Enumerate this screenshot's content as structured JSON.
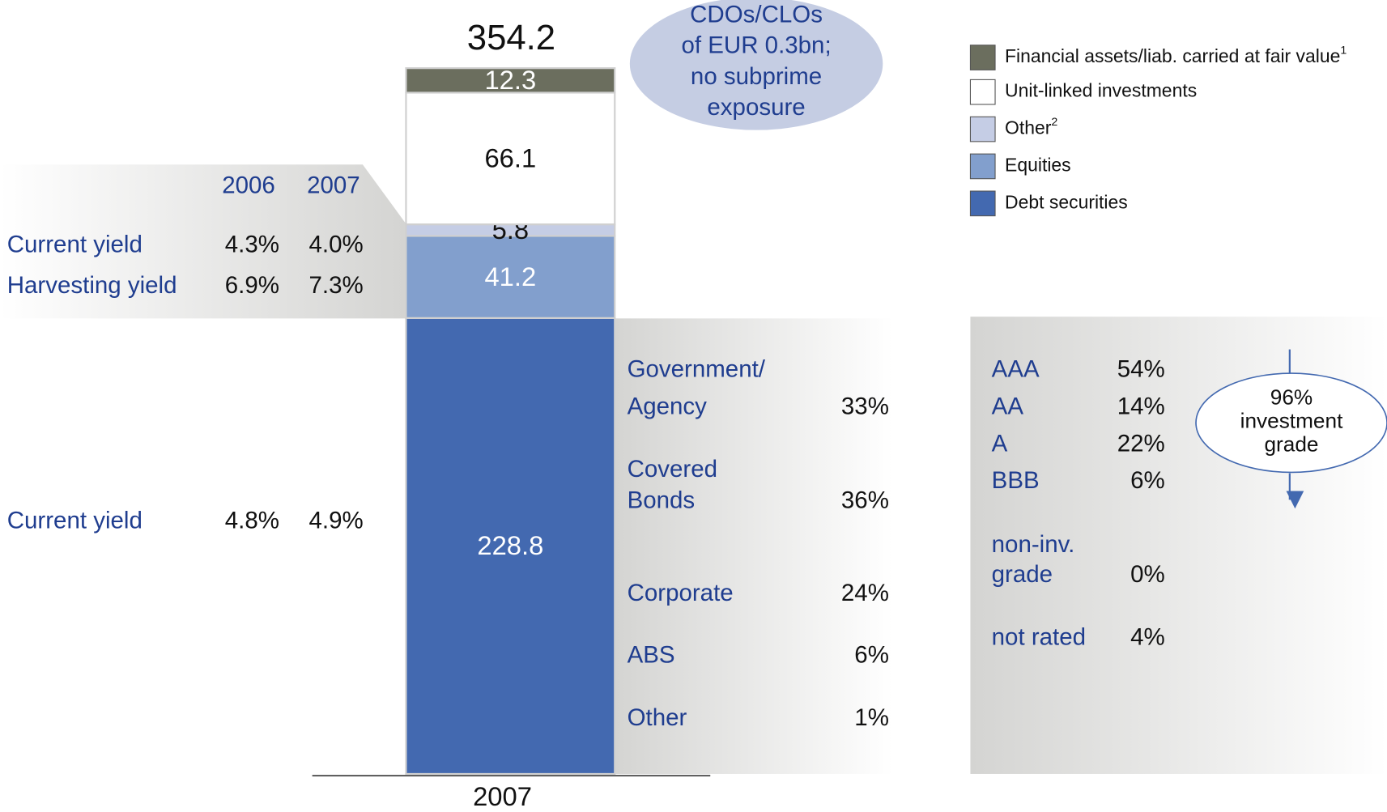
{
  "chart_data": {
    "type": "bar",
    "categories": [
      "2007"
    ],
    "total": 354.2,
    "series": [
      {
        "name": "Debt securities",
        "color": "#4369b0",
        "values": [
          228.8
        ]
      },
      {
        "name": "Equities",
        "color": "#829fcd",
        "values": [
          41.2
        ]
      },
      {
        "name": "Other",
        "footnote": "2",
        "color": "#c5cde5",
        "values": [
          5.8
        ]
      },
      {
        "name": "Unit-linked investments",
        "color": "#ffffff",
        "values": [
          66.1
        ]
      },
      {
        "name": "Financial assets/liab. carried at fair value",
        "footnote": "1",
        "color": "#6b6e5e",
        "values": [
          12.3
        ]
      }
    ],
    "annotation": [
      "CDOs/CLOs",
      "of EUR 0.3bn;",
      "no subprime",
      "exposure"
    ]
  },
  "yields": {
    "headers": [
      "2006",
      "2007"
    ],
    "equity_rows": [
      {
        "label": "Current yield",
        "values": [
          "4.3%",
          "4.0%"
        ]
      },
      {
        "label": "Harvesting yield",
        "values": [
          "6.9%",
          "7.3%"
        ]
      }
    ],
    "debt_rows": [
      {
        "label": "Current yield",
        "values": [
          "4.8%",
          "4.9%"
        ]
      }
    ]
  },
  "breakdown": [
    {
      "label": [
        "Government/",
        "Agency"
      ],
      "share": "33%"
    },
    {
      "label": [
        "Covered",
        "Bonds"
      ],
      "share": "36%"
    },
    {
      "label": [
        "Corporate"
      ],
      "share": "24%"
    },
    {
      "label": [
        "ABS"
      ],
      "share": "6%"
    },
    {
      "label": [
        "Other"
      ],
      "share": "1%"
    }
  ],
  "ratings": {
    "rows": [
      {
        "label": [
          "AAA"
        ],
        "share": "54%"
      },
      {
        "label": [
          "AA"
        ],
        "share": "14%"
      },
      {
        "label": [
          "A"
        ],
        "share": "22%"
      },
      {
        "label": [
          "BBB"
        ],
        "share": "6%"
      },
      {
        "label": [
          "non-inv.",
          "grade"
        ],
        "share": "0%"
      },
      {
        "label": [
          "not rated"
        ],
        "share": "4%"
      }
    ],
    "note": [
      "96%",
      "investment",
      "grade"
    ]
  }
}
